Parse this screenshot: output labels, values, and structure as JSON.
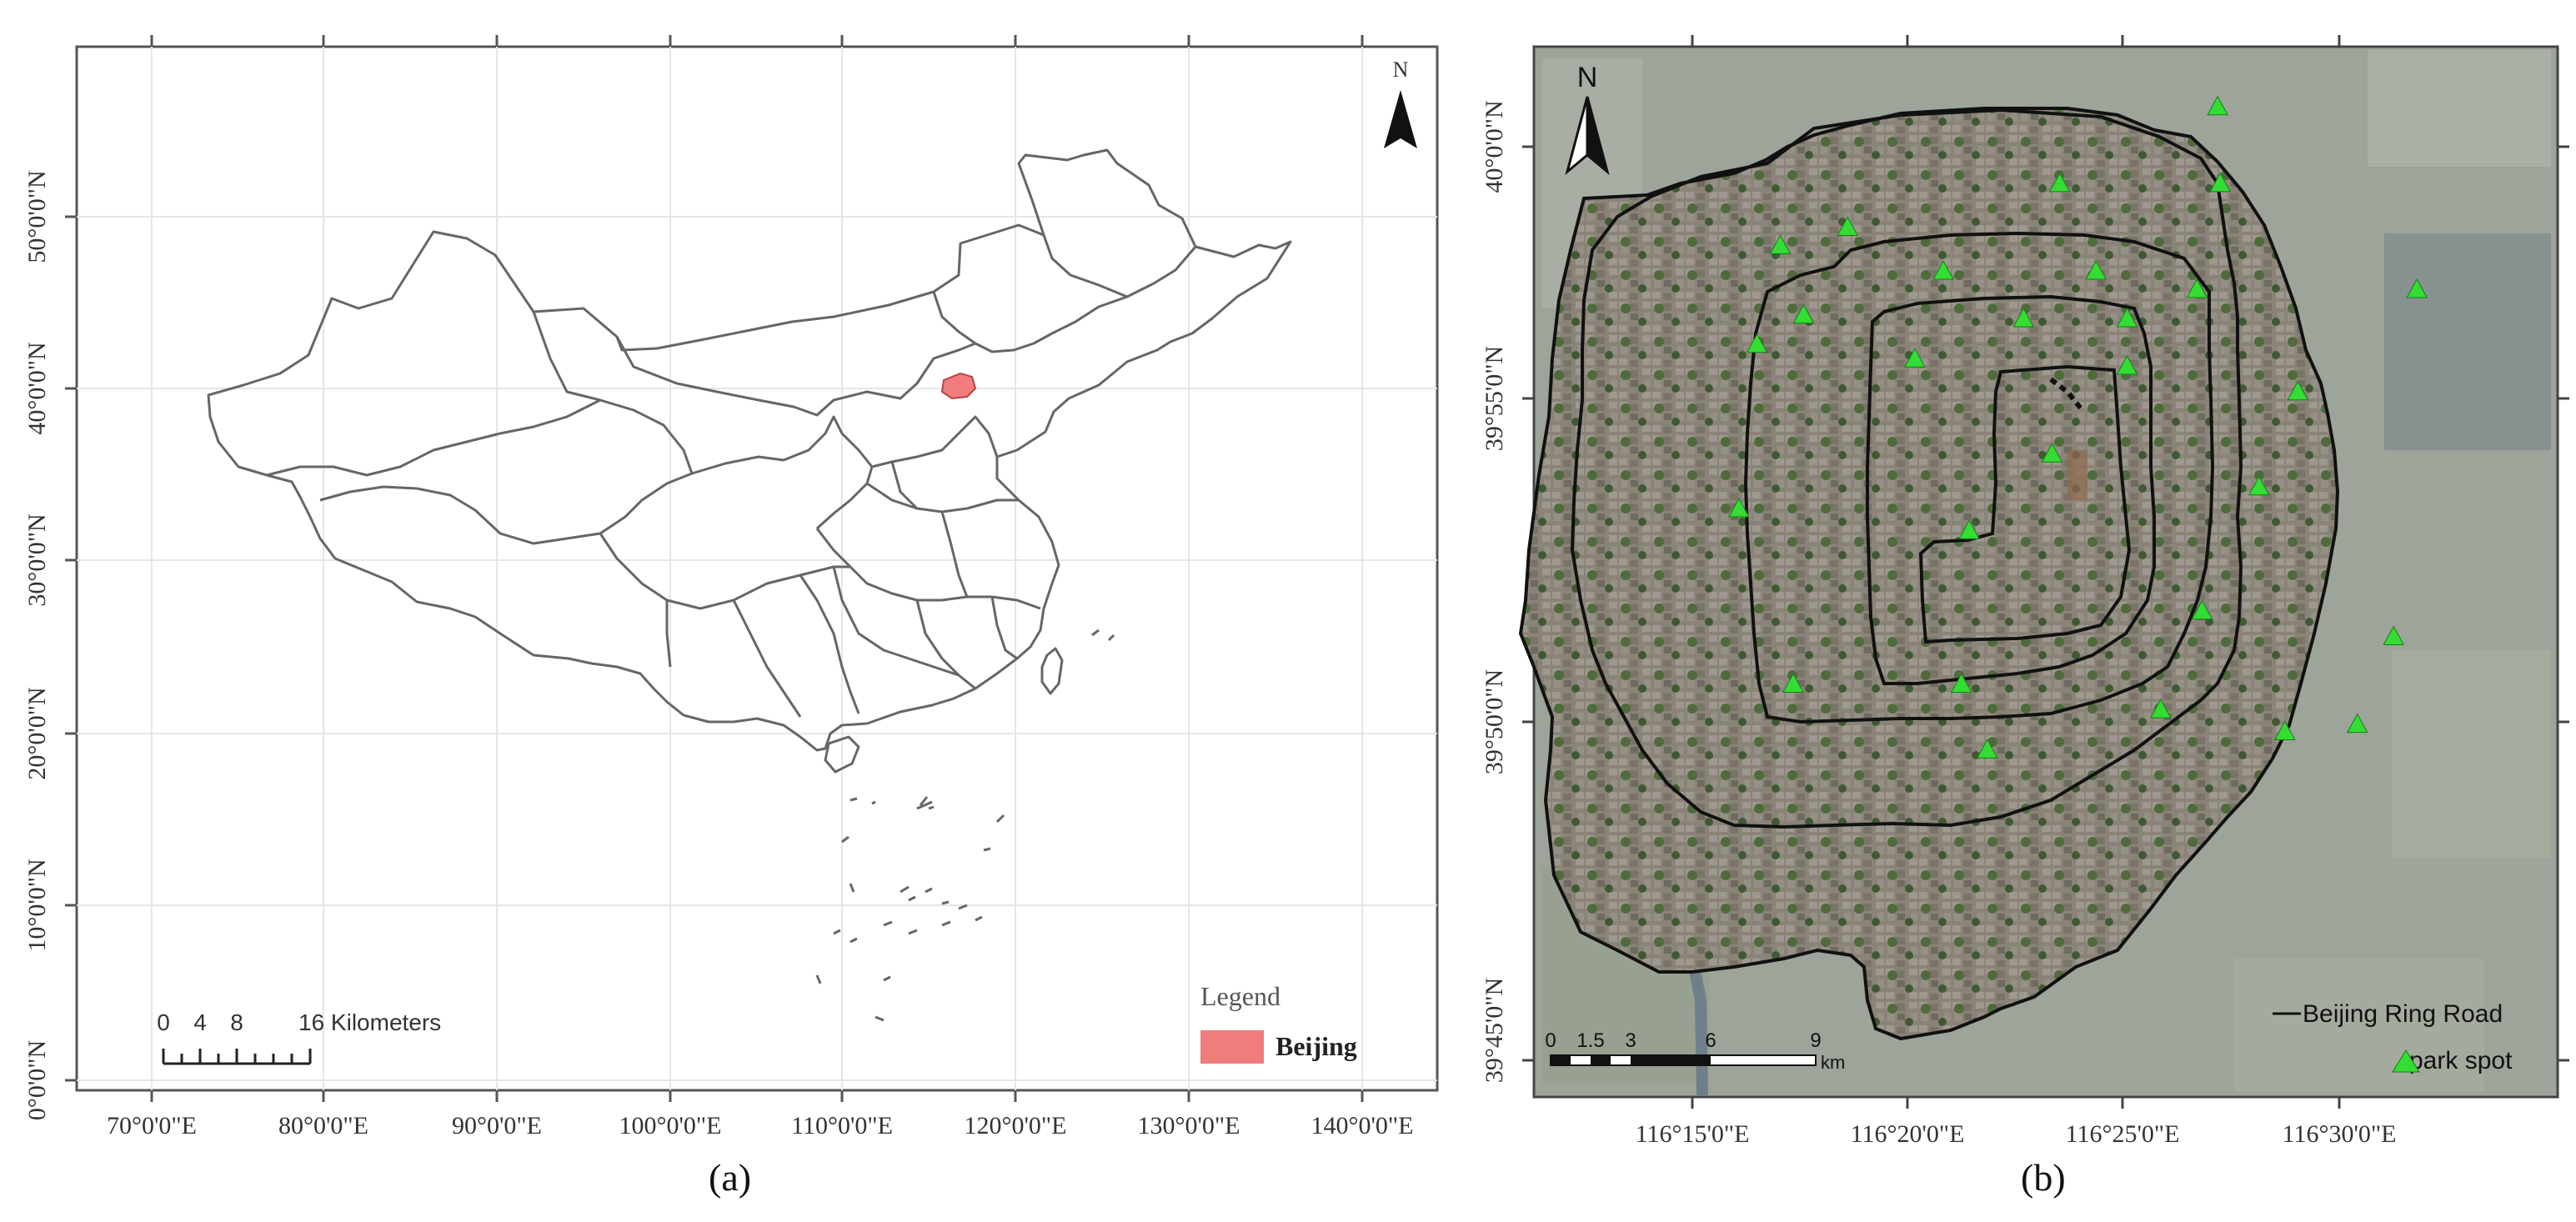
{
  "panel_a": {
    "caption": "(a)",
    "north": "N",
    "lat_labels": [
      "0°0'0\"N",
      "10°0'0\"N",
      "20°0'0\"N",
      "30°0'0\"N",
      "40°0'0\"N",
      "50°0'0\"N"
    ],
    "lon_labels": [
      "70°0'0\"E",
      "80°0'0\"E",
      "90°0'0\"E",
      "100°0'0\"E",
      "110°0'0\"E",
      "120°0'0\"E",
      "130°0'0\"E",
      "140°0'0\"E"
    ],
    "scale_bar": {
      "ticks": [
        "0",
        "4",
        "8"
      ],
      "end_label": "16 Kilometers"
    },
    "legend": {
      "title": "Legend",
      "item": "Beijing",
      "item_color": "#f07c7c"
    },
    "map_region": "China provincial boundaries",
    "highlight": "Beijing"
  },
  "panel_b": {
    "caption": "(b)",
    "north": "N",
    "lat_labels": [
      "39°45'0\"N",
      "39°50'0\"N",
      "39°55'0\"N",
      "40°0'0\"N"
    ],
    "lon_labels": [
      "116°15'0\"E",
      "116°20'0\"E",
      "116°25'0\"E",
      "116°30'0\"E"
    ],
    "scale_bar": {
      "ticks": [
        "0",
        "1.5",
        "3",
        "6",
        "9"
      ],
      "unit": "km"
    },
    "legend": {
      "ring_road": "Beijing  Ring Road",
      "park_spot": "park spot"
    },
    "marker_color": "#33dd33",
    "park_spots": [
      {
        "lon": 116.453,
        "lat": 40.011
      },
      {
        "lon": 116.392,
        "lat": 39.99
      },
      {
        "lon": 116.454,
        "lat": 39.99
      },
      {
        "lon": 116.31,
        "lat": 39.978
      },
      {
        "lon": 116.347,
        "lat": 39.966
      },
      {
        "lon": 116.406,
        "lat": 39.966
      },
      {
        "lon": 116.445,
        "lat": 39.961
      },
      {
        "lon": 116.53,
        "lat": 39.961
      },
      {
        "lon": 116.293,
        "lat": 39.954
      },
      {
        "lon": 116.378,
        "lat": 39.953
      },
      {
        "lon": 116.418,
        "lat": 39.953
      },
      {
        "lon": 116.275,
        "lat": 39.946
      },
      {
        "lon": 116.336,
        "lat": 39.942
      },
      {
        "lon": 116.418,
        "lat": 39.94
      },
      {
        "lon": 116.484,
        "lat": 39.933
      },
      {
        "lon": 116.389,
        "lat": 39.916
      },
      {
        "lon": 116.469,
        "lat": 39.907
      },
      {
        "lon": 116.268,
        "lat": 39.901
      },
      {
        "lon": 116.357,
        "lat": 39.895
      },
      {
        "lon": 116.447,
        "lat": 39.873
      },
      {
        "lon": 116.521,
        "lat": 39.866
      },
      {
        "lon": 116.354,
        "lat": 39.853
      },
      {
        "lon": 116.507,
        "lat": 39.842
      },
      {
        "lon": 116.364,
        "lat": 39.835
      },
      {
        "lon": 116.479,
        "lat": 39.84
      },
      {
        "lon": 116.431,
        "lat": 39.846
      },
      {
        "lon": 116.289,
        "lat": 39.853
      },
      {
        "lon": 116.284,
        "lat": 39.973
      }
    ]
  }
}
